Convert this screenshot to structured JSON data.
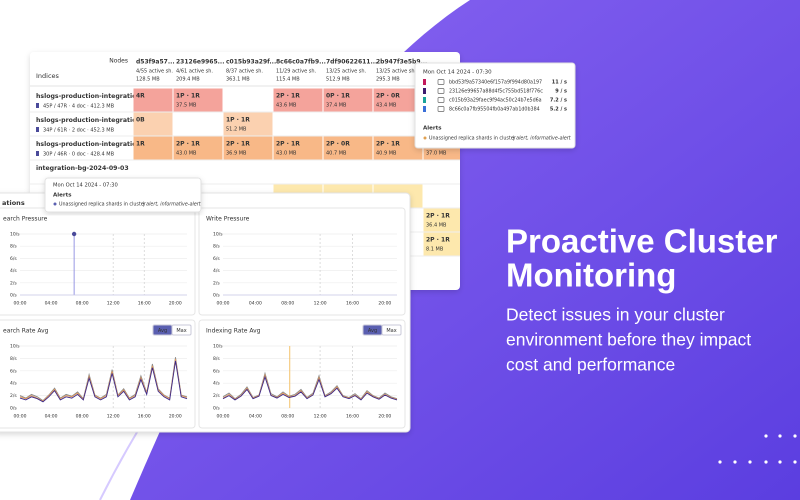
{
  "hero": {
    "title_lines": [
      "Proactive Cluster",
      "Monitoring"
    ],
    "body_lines": [
      "Detect issues in your cluster",
      "environment before they impact",
      "cost and performance"
    ]
  },
  "table": {
    "corner_top": "Nodes",
    "corner_bottom": "Indices",
    "columns": [
      {
        "id": "d53f9a57...",
        "shards": "4/55 active sh.",
        "size": "128.5 MB"
      },
      {
        "id": "23126e9965...",
        "shards": "4/61 active sh.",
        "size": "209.4 MB"
      },
      {
        "id": "c015b93a29f...",
        "shards": "8/37 active sh.",
        "size": "363.1 MB"
      },
      {
        "id": "8c66c0a7fb9...",
        "shards": "11/29 active sh.",
        "size": "115.4 MB"
      },
      {
        "id": "7df90622611...",
        "shards": "13/25 active sh.",
        "size": "512.9 MB"
      },
      {
        "id": "2b947f3e5b9...",
        "shards": "13/25 active sh.",
        "size": "295.3 MB"
      }
    ],
    "rows": [
      {
        "name": "hslogs-production-integration-s...",
        "meta": "45P / 47R · 4 doc · 412.3 MB",
        "cells": [
          {
            "label": "4R",
            "color": "#f4a39b"
          },
          {
            "label": "1P · 1R",
            "size": "37.5 MB",
            "color": "#f4a39b"
          },
          null,
          {
            "label": "2P · 1R",
            "size": "43.6 MB",
            "color": "#f4a39b"
          },
          {
            "label": "0P · 1R",
            "size": "37.4 MB",
            "color": "#f4a39b"
          },
          {
            "label": "2P · 0R",
            "size": "43.4 MB",
            "color": "#f4a39b"
          },
          null
        ]
      },
      {
        "name": "hslogs-production-integration-s...",
        "meta": "34P / 61R · 2 doc · 452.3 MB",
        "cells": [
          {
            "label": "0B",
            "color": "#fbd1b0"
          },
          null,
          {
            "label": "1P · 1R",
            "size": "51.2 MB",
            "color": "#fbd1b0"
          },
          null,
          null,
          null,
          null
        ]
      },
      {
        "name": "hslogs-production-integration-s...",
        "meta": "30P / 46R · 0 doc · 428.4 MB",
        "cells": [
          {
            "label": "1R",
            "color": "#f8b887"
          },
          {
            "label": "2P · 1R",
            "size": "43.0 MB",
            "color": "#f8b887"
          },
          {
            "label": "2P · 1R",
            "size": "36.9 MB",
            "color": "#f8b887"
          },
          {
            "label": "2P · 1R",
            "size": "43.0 MB",
            "color": "#f8b887"
          },
          {
            "label": "2P · 0R",
            "size": "40.7 MB",
            "color": "#f8b887"
          },
          {
            "label": "2P · 1R",
            "size": "40.9 MB",
            "color": "#f8b887"
          },
          {
            "size": "37.0 MB",
            "color": "#f8b887"
          }
        ]
      },
      {
        "name": "integration-bg-2024-09-03",
        "cells": [
          null,
          null,
          null,
          null,
          null,
          null,
          null
        ]
      },
      {
        "cells": [
          null,
          null,
          null,
          {
            "color": "#fde8ad"
          },
          {
            "color": "#fde8ad"
          },
          {
            "color": "#fde8ad"
          },
          null
        ]
      },
      {
        "cells": [
          null,
          null,
          null,
          null,
          null,
          null,
          {
            "label": "2P · 1R",
            "size": "36.4 MB",
            "color": "#fde8ad"
          }
        ]
      },
      {
        "cells": [
          null,
          null,
          null,
          null,
          null,
          null,
          {
            "label": "2P · 1R",
            "size": "8.1 MB",
            "color": "#fde8ad"
          }
        ]
      }
    ]
  },
  "node_tooltip": {
    "time": "Mon Oct 14 2024 - 07:30",
    "nodes": [
      {
        "id": "bbd53f9a57340e6f157a9f994d80a197",
        "rate": "11 / s",
        "color": "#c2185b"
      },
      {
        "id": "23126e99657a88d4f5c755bd518f776c",
        "rate": "9 / s",
        "color": "#3d1a6e"
      },
      {
        "id": "c015b93a29faec9f94ac50c24b7e5d6a",
        "rate": "7.2 / s",
        "color": "#1aa39a"
      },
      {
        "id": "8c66c0a7fb95504fb0a497ab1d0b384",
        "rate": "5.2 / s",
        "color": "#3a6fd8"
      }
    ],
    "alerts_title": "Alerts",
    "alert": "Unassigned replica shards in cluster",
    "alert_tags": "| alert, informative-alert"
  },
  "alert_tooltip": {
    "time": "Mon Oct 14 2024 - 07:30",
    "alerts_title": "Alerts",
    "alert": "Unassigned replica shards in cluster",
    "alert_tags": "| alert, informative-alert"
  },
  "operations": {
    "title": "ations",
    "panels": [
      {
        "title": "earch Pressure",
        "yticks": [
          {
            "value": 10,
            "label": "10/s"
          },
          {
            "value": 8,
            "label": "8/s"
          },
          {
            "value": 6,
            "label": "6/s"
          },
          {
            "value": 4,
            "label": "4/s"
          },
          {
            "value": 2,
            "label": "2/s"
          },
          {
            "value": 0,
            "label": "0/s"
          }
        ],
        "xticks": [
          "00:00",
          "04:00",
          "08:00",
          "12:00",
          "16:00",
          "20:00"
        ]
      },
      {
        "title": "Write Pressure",
        "yticks": [
          {
            "value": 10,
            "label": "10/s"
          },
          {
            "value": 8,
            "label": "8/s"
          },
          {
            "value": 6,
            "label": "6/s"
          },
          {
            "value": 4,
            "label": "4/s"
          },
          {
            "value": 2,
            "label": "2/s"
          },
          {
            "value": 0,
            "label": "0/s"
          }
        ],
        "xticks": [
          "00:00",
          "04:00",
          "08:00",
          "12:00",
          "16:00",
          "20:00"
        ]
      },
      {
        "title": "earch Rate Avg",
        "buttons": [
          "Avg",
          "Max"
        ],
        "yticks": [
          {
            "value": 10,
            "label": "10/s"
          },
          {
            "value": 8,
            "label": "8/s"
          },
          {
            "value": 6,
            "label": "6/s"
          },
          {
            "value": 4,
            "label": "4/s"
          },
          {
            "value": 2,
            "label": "2/s"
          },
          {
            "value": 0,
            "label": "0/s"
          }
        ],
        "xticks": [
          "00:00",
          "04:00",
          "08:00",
          "12:00",
          "16:00",
          "20:00"
        ],
        "series": [
          {
            "color": "#8a8a8a",
            "values": [
              2,
              1.6,
              2.2,
              1.8,
              1.2,
              2.1,
              3.2,
              1.6,
              2.2,
              1.9,
              2.6,
              1.5,
              5.4,
              2.1,
              1.6,
              2.2,
              6.2,
              2.1,
              3.1,
              1.6,
              2.2,
              5.2,
              2.5,
              7.1,
              3.1,
              2.1,
              1.6,
              8.2,
              2.1,
              1.8
            ]
          },
          {
            "color": "#e39a5a",
            "values": [
              1.8,
              1.5,
              2,
              1.6,
              1.1,
              2,
              3,
              1.5,
              2,
              1.8,
              2.4,
              1.4,
              5.1,
              2,
              1.5,
              2,
              5.9,
              2,
              2.9,
              1.5,
              2,
              4.9,
              2.4,
              6.8,
              2.9,
              2,
              1.5,
              7.9,
              2,
              1.7
            ]
          },
          {
            "color": "#3d2a8a",
            "values": [
              1.6,
              1.3,
              1.8,
              1.5,
              1,
              1.8,
              2.8,
              1.3,
              1.8,
              1.6,
              2.2,
              1.3,
              4.8,
              1.8,
              1.3,
              1.8,
              5.6,
              1.8,
              2.7,
              1.3,
              1.8,
              4.6,
              2.2,
              6.5,
              2.7,
              1.8,
              1.3,
              7.6,
              1.8,
              1.5
            ]
          }
        ]
      },
      {
        "title": "Indexing Rate Avg",
        "buttons": [
          "Avg",
          "Max"
        ],
        "yticks": [
          {
            "value": 10,
            "label": "10/s"
          },
          {
            "value": 8,
            "label": "8/s"
          },
          {
            "value": 6,
            "label": "6/s"
          },
          {
            "value": 4,
            "label": "4/s"
          },
          {
            "value": 2,
            "label": "2/s"
          },
          {
            "value": 0,
            "label": "0/s"
          }
        ],
        "xticks": [
          "00:00",
          "04:00",
          "08:00",
          "12:00",
          "16:00",
          "20:00"
        ],
        "series": [
          {
            "color": "#8a8a8a",
            "values": [
              1.8,
              2.4,
              1.5,
              2.2,
              3.4,
              1.7,
              2.1,
              5.6,
              2.3,
              1.8,
              2.6,
              1.9,
              2.2,
              3,
              1.7,
              2.4,
              5.2,
              2,
              2.6,
              3.6,
              2,
              1.7,
              2.3,
              1.5,
              2.8,
              2,
              1.6,
              2.4,
              1.8,
              1.5
            ]
          },
          {
            "color": "#e39a5a",
            "values": [
              1.6,
              2.2,
              1.4,
              2,
              3.2,
              1.6,
              2,
              5.3,
              2.1,
              1.7,
              2.4,
              1.8,
              2,
              2.8,
              1.6,
              2.2,
              4.9,
              1.9,
              2.4,
              3.4,
              1.9,
              1.6,
              2.1,
              1.4,
              2.6,
              1.9,
              1.5,
              2.2,
              1.7,
              1.4
            ]
          },
          {
            "color": "#3d2a8a",
            "values": [
              1.5,
              2,
              1.3,
              1.9,
              3,
              1.5,
              1.9,
              5,
              2,
              1.6,
              2.2,
              1.7,
              1.9,
              2.6,
              1.5,
              2.1,
              4.6,
              1.8,
              2.3,
              3.2,
              1.8,
              1.5,
              2,
              1.3,
              2.4,
              1.8,
              1.4,
              2.1,
              1.6,
              1.3
            ]
          }
        ]
      }
    ]
  }
}
